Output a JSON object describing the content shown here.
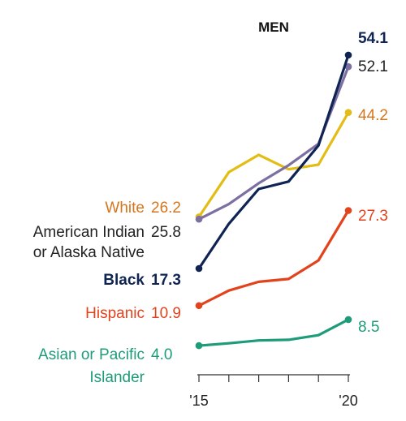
{
  "chart_data": {
    "type": "line",
    "title": "MEN",
    "x": [
      2015,
      2016,
      2017,
      2018,
      2019,
      2020
    ],
    "xticks": [
      {
        "value": 2015,
        "label": "'15"
      },
      {
        "value": 2020,
        "label": "'20"
      }
    ],
    "xlim": [
      2015,
      2020
    ],
    "ylim": [
      0,
      60
    ],
    "grid": false,
    "legend": "none",
    "series": [
      {
        "key": "white",
        "label_lines": [
          "White"
        ],
        "start_label": "26.2",
        "end_label": "44.2",
        "values": [
          26.2,
          33.9,
          36.9,
          34.4,
          35.2,
          44.2
        ],
        "color": "#E3BC15",
        "label_color": "#D5761E",
        "bold": false
      },
      {
        "key": "aian",
        "label_lines": [
          "American Indian",
          "or Alaska Native"
        ],
        "start_label": "25.8",
        "end_label": "52.1",
        "values": [
          25.8,
          28.4,
          32.0,
          35.1,
          38.8,
          52.1
        ],
        "color": "#7C6FA2",
        "label_color": "#222222",
        "bold": false
      },
      {
        "key": "black",
        "label_lines": [
          "Black"
        ],
        "start_label": "17.3",
        "end_label": "54.1",
        "values": [
          17.3,
          25.0,
          31.0,
          32.3,
          38.5,
          54.1
        ],
        "color": "#0F2452",
        "label_color": "#0F2452",
        "bold": true
      },
      {
        "key": "hispanic",
        "label_lines": [
          "Hispanic"
        ],
        "start_label": "10.9",
        "end_label": "27.3",
        "values": [
          10.9,
          13.5,
          15.0,
          15.5,
          18.7,
          27.3
        ],
        "color": "#E2431D",
        "label_color": "#E2431D",
        "bold": false
      },
      {
        "key": "asian",
        "label_lines": [
          "Asian or Pacific",
          "Islander"
        ],
        "start_label": "4.0",
        "end_label": "8.5",
        "values": [
          4.0,
          4.4,
          4.9,
          5.0,
          5.8,
          8.5
        ],
        "color": "#1E9C7A",
        "label_color": "#1E9C7A",
        "bold": false
      }
    ]
  }
}
